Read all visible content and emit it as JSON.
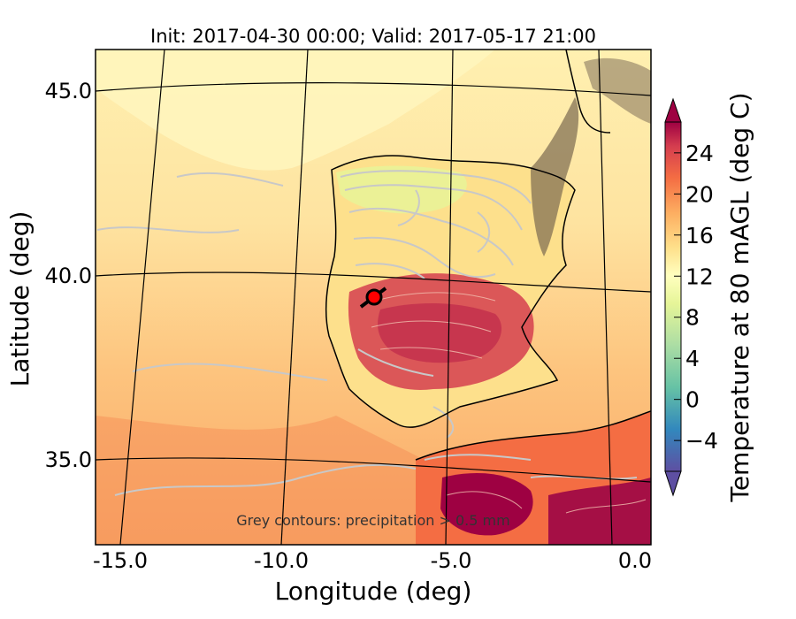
{
  "figure": {
    "title": "Init: 2017-04-30 00:00; Valid: 2017-05-17 21:00",
    "xlabel": "Longitude (deg)",
    "ylabel": "Latitude (deg)",
    "xticks": [
      "-15.0",
      "-10.0",
      "-5.0",
      "0.0"
    ],
    "yticks": [
      "45.0",
      "40.0",
      "35.0"
    ],
    "note": "Grey contours: precipitation > 0.5 mm"
  },
  "colorbar": {
    "label": "Temperature at 80 mAGL (deg C)",
    "ticks": [
      "24",
      "20",
      "16",
      "12",
      "8",
      "4",
      "0",
      "−4"
    ],
    "range": [
      -7,
      27
    ],
    "colormap": "Spectral_r"
  },
  "chart_data": {
    "type": "map",
    "projection": "conic",
    "region": "Iberian Peninsula",
    "lon_range": [
      -16,
      0.3
    ],
    "lat_range": [
      33,
      46
    ],
    "field": "Temperature at 80 mAGL (deg C)",
    "overlay": "precipitation > 0.5 mm (grey contours)",
    "marker": {
      "lon": -7.6,
      "lat": 39.4,
      "color": "#ff0000"
    },
    "colors": {
      "warm_max": "#9e0142",
      "hot": "#d53e4f",
      "warm": "#f46d43",
      "mild": "#fdae61",
      "cool": "#fee08b",
      "neutral": "#ffffbf",
      "cold": "#abdda4",
      "colder": "#66c2a5",
      "coldest": "#5e4fa2"
    }
  }
}
